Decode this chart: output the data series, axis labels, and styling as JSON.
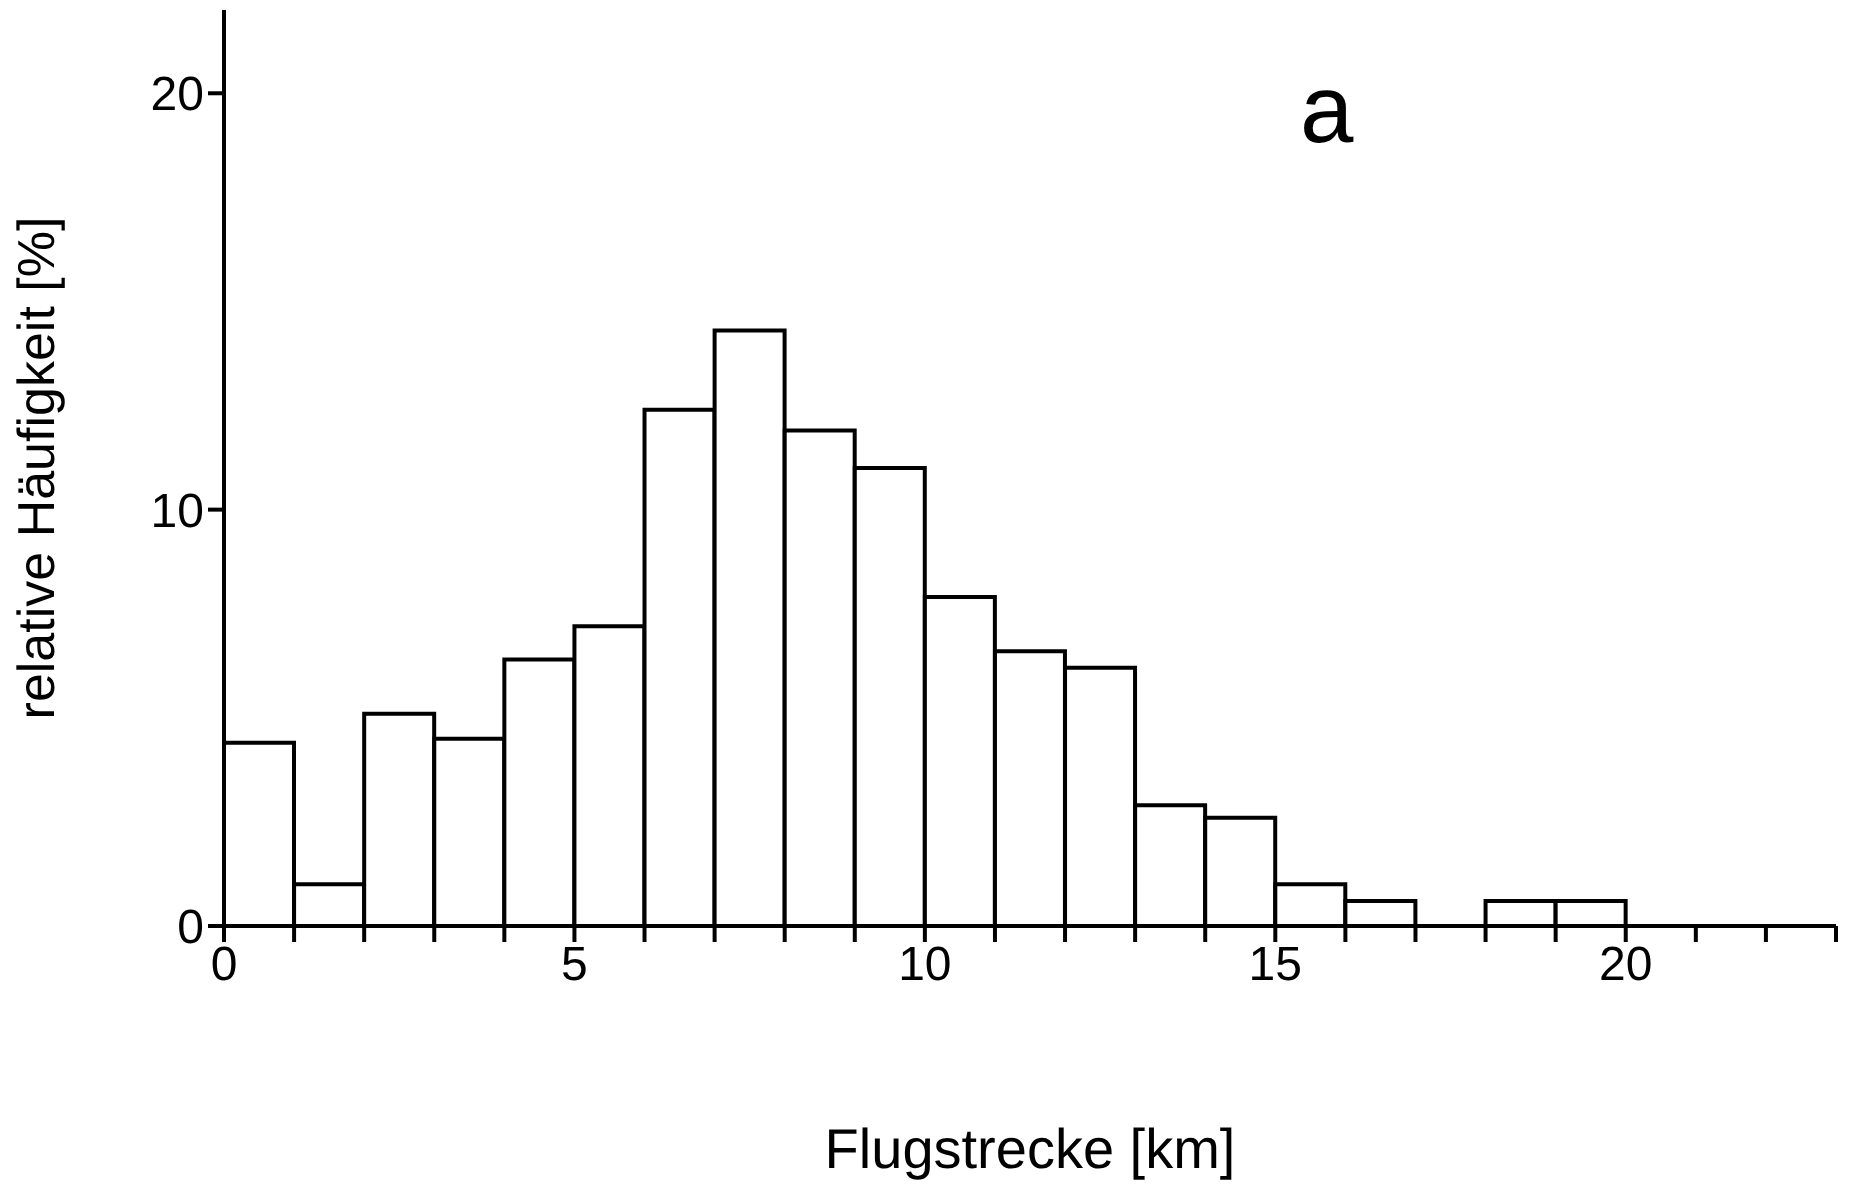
{
  "chart_data": {
    "type": "histogram",
    "xlabel": "Flugstrecke [km]",
    "ylabel": "relative Häufigkeit [%]",
    "annotations": [
      "a"
    ],
    "bins": [
      0,
      1,
      2,
      3,
      4,
      5,
      6,
      7,
      8,
      9,
      10,
      11,
      12,
      13,
      14,
      15,
      16,
      17,
      18,
      19,
      20,
      21,
      22,
      23
    ],
    "values": [
      4.4,
      1.0,
      5.1,
      4.5,
      6.4,
      7.2,
      12.4,
      14.3,
      11.9,
      11.0,
      7.9,
      6.6,
      6.2,
      2.9,
      2.6,
      1.0,
      0.6,
      0,
      0.6,
      0.6,
      0,
      0,
      0
    ],
    "color": "#ffffff",
    "xlim": [
      0,
      23
    ],
    "xticks": [
      0,
      {
        "value": 1,
        "label": null
      },
      {
        "value": 2,
        "label": null
      },
      {
        "value": 3,
        "label": null
      },
      {
        "value": 4,
        "label": null
      },
      5,
      {
        "value": 6,
        "label": null
      },
      {
        "value": 7,
        "label": null
      },
      {
        "value": 8,
        "label": null
      },
      {
        "value": 9,
        "label": null
      },
      10,
      {
        "value": 11,
        "label": null
      },
      {
        "value": 12,
        "label": null
      },
      {
        "value": 13,
        "label": null
      },
      {
        "value": 14,
        "label": null
      },
      15,
      {
        "value": 16,
        "label": null
      },
      {
        "value": 17,
        "label": null
      },
      {
        "value": 18,
        "label": null
      },
      {
        "value": 19,
        "label": null
      },
      20,
      {
        "value": 21,
        "label": null
      },
      {
        "value": 22,
        "label": null
      },
      {
        "value": 23,
        "label": null
      }
    ],
    "ylim": [
      0,
      22
    ],
    "yticks": [
      0,
      10,
      20
    ]
  }
}
